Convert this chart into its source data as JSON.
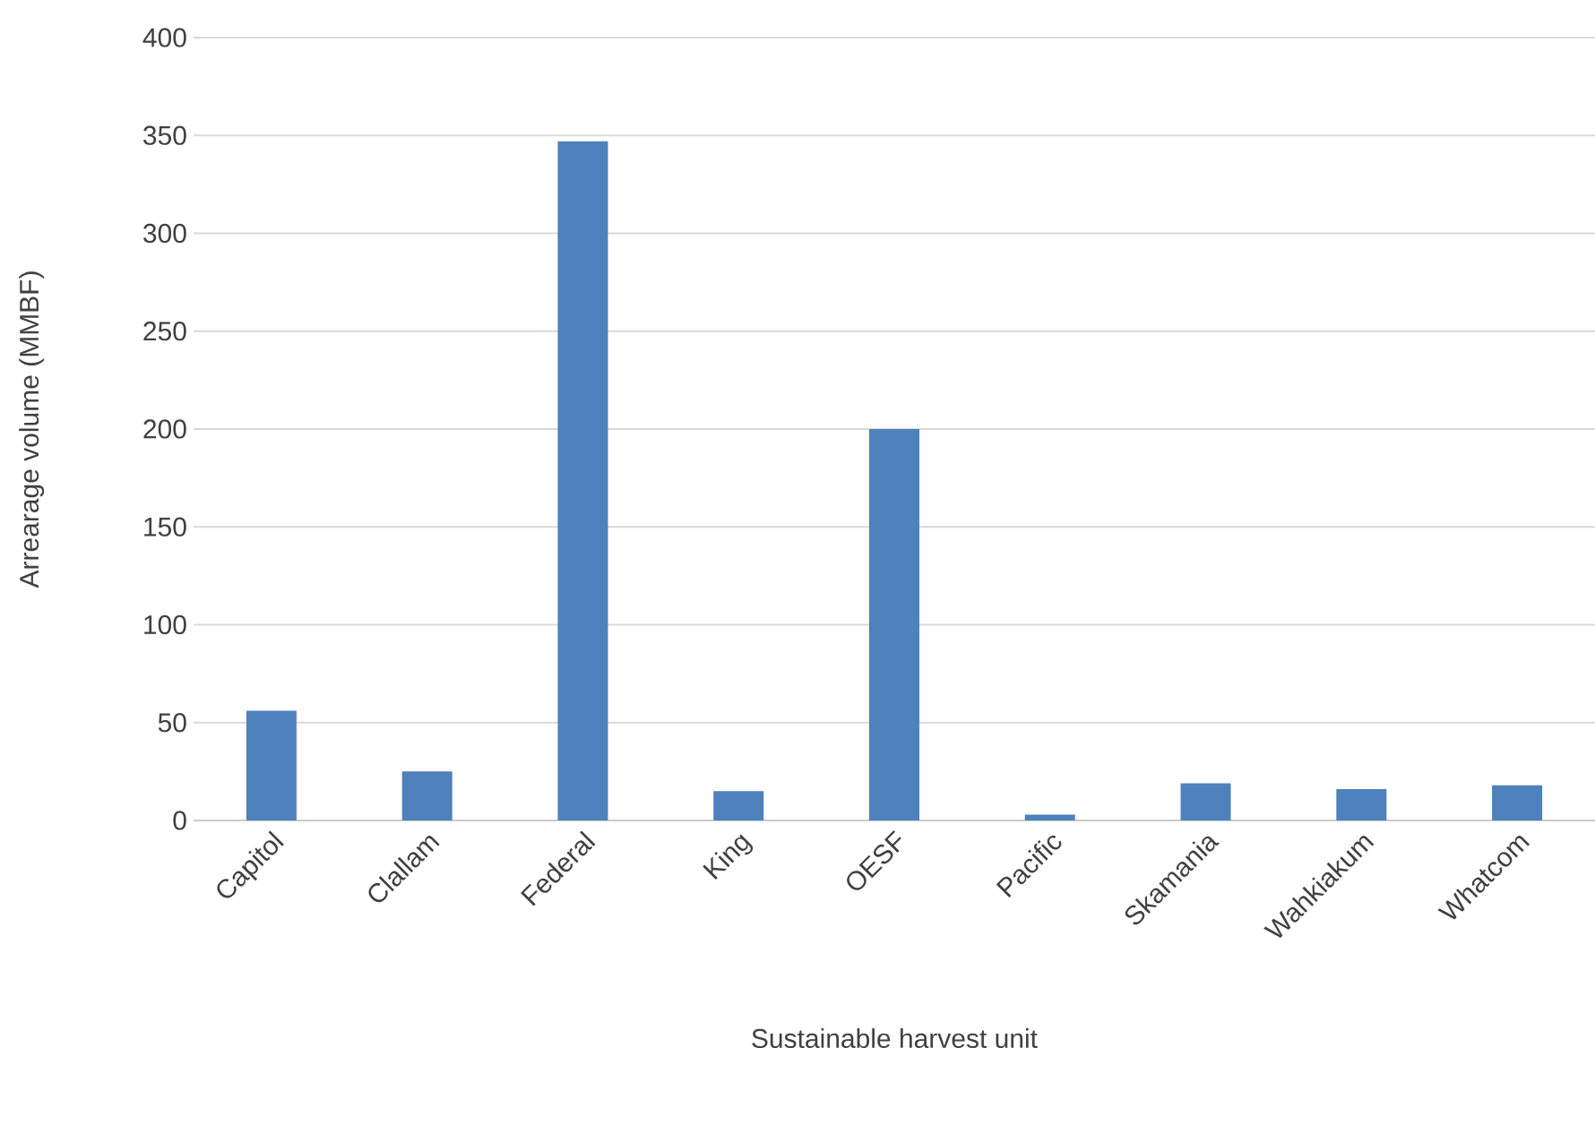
{
  "chart_data": {
    "type": "bar",
    "xlabel": "Sustainable harvest unit",
    "ylabel": "Arrearage volume (MMBF)",
    "categories": [
      "Capitol",
      "Clallam",
      "Federal",
      "King",
      "OESF",
      "Pacific",
      "Skamania",
      "Wahkiakum",
      "Whatcom"
    ],
    "values": [
      56,
      25,
      347,
      15,
      200,
      3,
      19,
      16,
      18
    ],
    "color": "#4f81bd",
    "ylim": [
      0,
      400
    ],
    "yticks": [
      0,
      50,
      100,
      150,
      200,
      250,
      300,
      350,
      400
    ],
    "grid": "y"
  }
}
